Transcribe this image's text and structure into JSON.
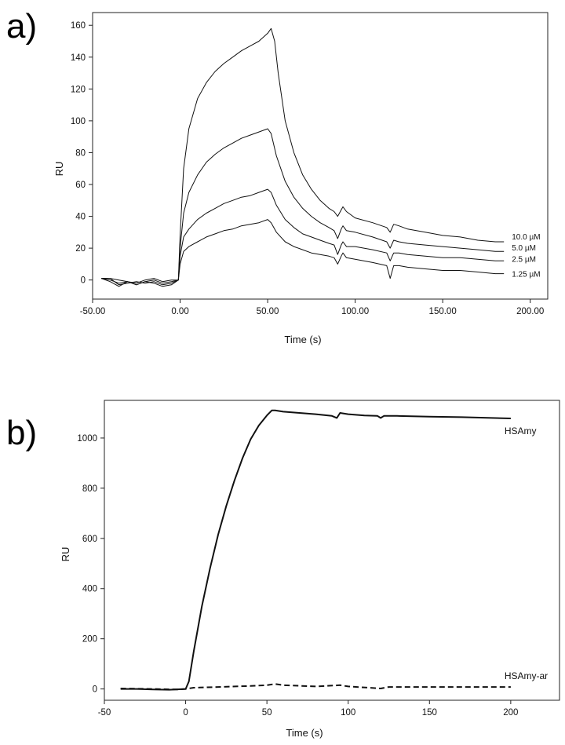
{
  "chart_data": [
    {
      "panel": "a)",
      "type": "line",
      "xlabel": "Time (s)",
      "ylabel": "RU",
      "xlim": [
        -50,
        210
      ],
      "ylim": [
        -12,
        168
      ],
      "xticks": [
        -50,
        0,
        50,
        100,
        150,
        200
      ],
      "xtick_labels": [
        "-50.00",
        "0.00",
        "50.00",
        "100.00",
        "150.00",
        "200.00"
      ],
      "yticks": [
        0,
        20,
        40,
        60,
        80,
        100,
        120,
        140,
        160
      ],
      "ytick_labels": [
        "0",
        "20",
        "40",
        "60",
        "80",
        "100",
        "120",
        "140",
        "160"
      ],
      "grid": false,
      "series": [
        {
          "name": "10.0  µM",
          "x": [
            -45,
            -40,
            -35,
            -30,
            -25,
            -20,
            -15,
            -10,
            -5,
            -1,
            0,
            2,
            5,
            10,
            15,
            20,
            25,
            30,
            35,
            40,
            45,
            50,
            52,
            54,
            56,
            60,
            65,
            70,
            75,
            80,
            85,
            88,
            90,
            92,
            93,
            95,
            100,
            110,
            118,
            120,
            122,
            125,
            130,
            140,
            150,
            160,
            170,
            180,
            185
          ],
          "y": [
            1,
            1,
            0,
            -1,
            -2,
            0,
            1,
            -1,
            0,
            0,
            28,
            70,
            95,
            114,
            124,
            131,
            136,
            140,
            144,
            147,
            150,
            155,
            158,
            150,
            130,
            100,
            80,
            66,
            57,
            50,
            45,
            43,
            40,
            44,
            46,
            43,
            39,
            36,
            33,
            30,
            35,
            34,
            32,
            30,
            28,
            27,
            25,
            24,
            24
          ]
        },
        {
          "name": "5.0  µM",
          "x": [
            -45,
            -40,
            -35,
            -30,
            -25,
            -20,
            -15,
            -10,
            -5,
            -1,
            0,
            2,
            5,
            10,
            15,
            20,
            25,
            30,
            35,
            40,
            45,
            50,
            52,
            55,
            60,
            65,
            70,
            75,
            80,
            85,
            88,
            90,
            92,
            93,
            95,
            100,
            110,
            118,
            120,
            122,
            125,
            130,
            140,
            150,
            160,
            170,
            180,
            185
          ],
          "y": [
            1,
            0,
            -2,
            -1,
            -3,
            -1,
            0,
            -2,
            -1,
            0,
            20,
            42,
            55,
            66,
            74,
            79,
            83,
            86,
            89,
            91,
            93,
            95,
            92,
            78,
            62,
            52,
            45,
            40,
            36,
            33,
            31,
            26,
            32,
            34,
            31,
            30,
            27,
            24,
            20,
            25,
            24,
            23,
            22,
            21,
            20,
            19,
            18,
            18
          ]
        },
        {
          "name": "2.5  µM",
          "x": [
            -45,
            -40,
            -35,
            -30,
            -25,
            -20,
            -15,
            -10,
            -5,
            -1,
            0,
            2,
            5,
            10,
            15,
            20,
            25,
            30,
            35,
            40,
            45,
            50,
            52,
            55,
            60,
            65,
            70,
            75,
            80,
            85,
            88,
            90,
            92,
            93,
            95,
            100,
            110,
            118,
            120,
            122,
            125,
            130,
            140,
            150,
            160,
            170,
            180,
            185
          ],
          "y": [
            1,
            1,
            -3,
            -2,
            -1,
            -2,
            -1,
            -3,
            -2,
            0,
            15,
            27,
            32,
            38,
            42,
            45,
            48,
            50,
            52,
            53,
            55,
            57,
            55,
            47,
            38,
            33,
            29,
            27,
            25,
            23,
            22,
            16,
            22,
            24,
            21,
            21,
            19,
            17,
            12,
            17,
            17,
            16,
            15,
            14,
            14,
            13,
            12,
            12
          ]
        },
        {
          "name": "1.25 µM",
          "x": [
            -45,
            -40,
            -35,
            -30,
            -25,
            -20,
            -15,
            -10,
            -5,
            -1,
            0,
            2,
            5,
            10,
            15,
            20,
            25,
            30,
            35,
            40,
            45,
            50,
            52,
            55,
            60,
            65,
            70,
            75,
            80,
            85,
            88,
            90,
            92,
            93,
            95,
            100,
            110,
            118,
            120,
            122,
            125,
            130,
            140,
            150,
            160,
            170,
            180,
            185
          ],
          "y": [
            1,
            -1,
            -4,
            -1,
            -3,
            -1,
            -2,
            -4,
            -3,
            0,
            10,
            18,
            21,
            24,
            27,
            29,
            31,
            32,
            34,
            35,
            36,
            38,
            36,
            30,
            24,
            21,
            19,
            17,
            16,
            15,
            14,
            10,
            15,
            17,
            14,
            13,
            11,
            9,
            1,
            9,
            9,
            8,
            7,
            6,
            6,
            5,
            4,
            4
          ]
        }
      ]
    },
    {
      "panel": "b)",
      "type": "line",
      "xlabel": "Time (s)",
      "ylabel": "RU",
      "xlim": [
        -50,
        230
      ],
      "ylim": [
        -45,
        1150
      ],
      "xticks": [
        -50,
        0,
        50,
        100,
        150,
        200
      ],
      "xtick_labels": [
        "-50",
        "0",
        "50",
        "100",
        "150",
        "200"
      ],
      "yticks": [
        0,
        200,
        400,
        600,
        800,
        1000
      ],
      "ytick_labels": [
        "0",
        "200",
        "400",
        "600",
        "800",
        "1000"
      ],
      "grid": false,
      "series": [
        {
          "name": "HSAmy",
          "style": "solid",
          "x": [
            -40,
            -30,
            -20,
            -10,
            0,
            2,
            5,
            10,
            15,
            20,
            25,
            30,
            35,
            40,
            45,
            50,
            53,
            55,
            60,
            70,
            80,
            90,
            93,
            95,
            100,
            110,
            118,
            120,
            122,
            130,
            150,
            170,
            200
          ],
          "y": [
            0,
            0,
            -2,
            -3,
            0,
            30,
            150,
            330,
            480,
            615,
            730,
            830,
            920,
            995,
            1050,
            1090,
            1110,
            1110,
            1105,
            1100,
            1095,
            1088,
            1080,
            1100,
            1095,
            1090,
            1088,
            1080,
            1088,
            1088,
            1085,
            1083,
            1078
          ]
        },
        {
          "name": "HSAmy-ar",
          "style": "dashed",
          "x": [
            -40,
            -20,
            -5,
            0,
            5,
            20,
            40,
            50,
            55,
            60,
            80,
            95,
            100,
            120,
            125,
            150,
            200
          ],
          "y": [
            2,
            0,
            -2,
            0,
            5,
            8,
            12,
            15,
            20,
            15,
            10,
            15,
            10,
            2,
            8,
            8,
            8
          ]
        }
      ]
    }
  ]
}
